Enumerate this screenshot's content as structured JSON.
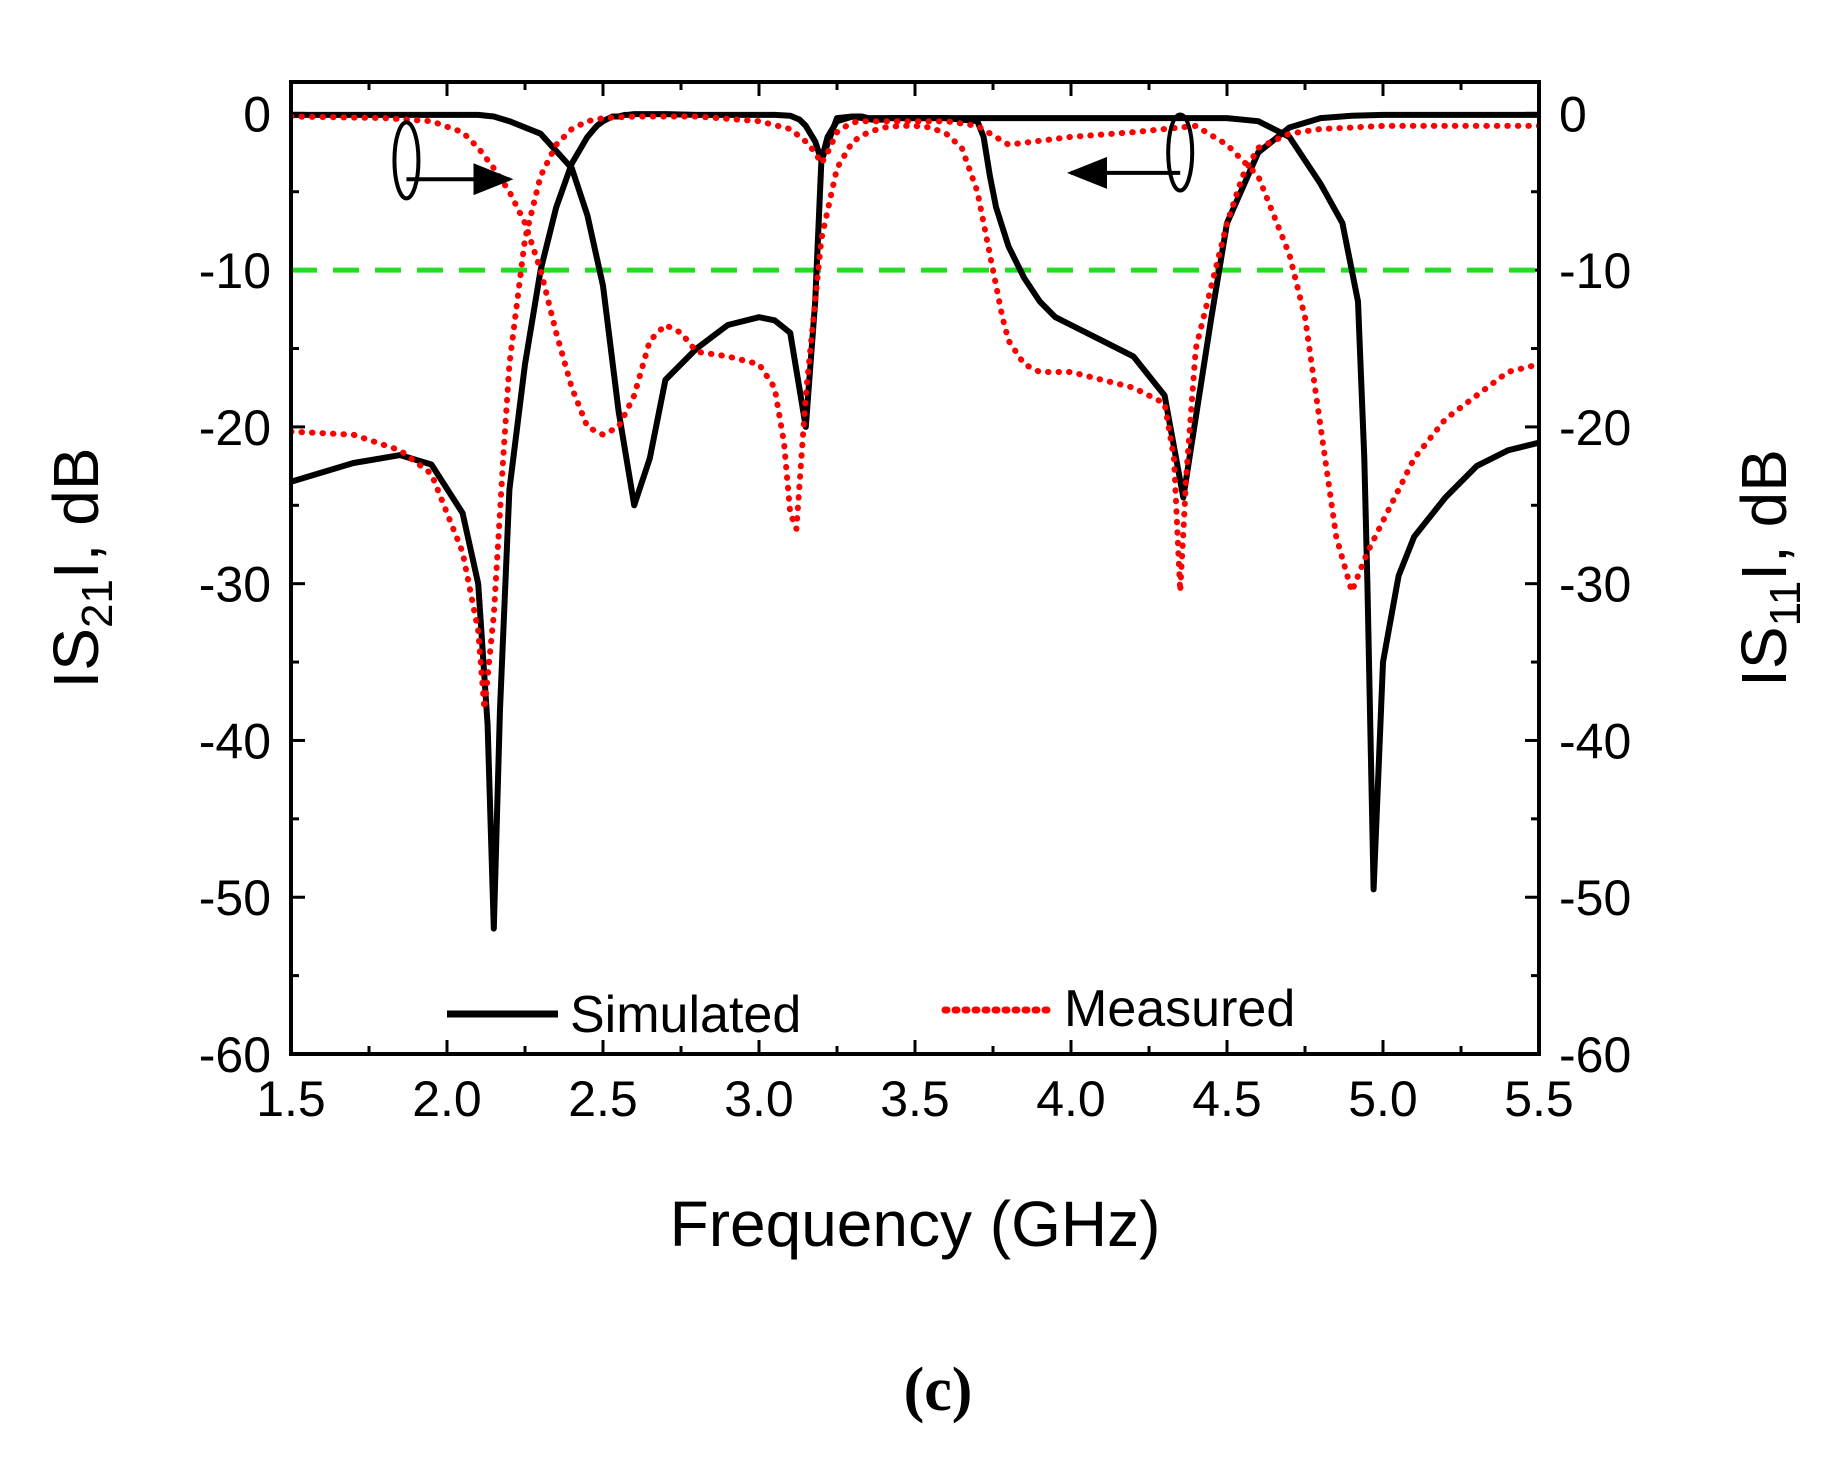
{
  "chart_data": {
    "type": "line",
    "panel_label": "(c)",
    "xlabel": "Frequency (GHz)",
    "ylabel_left": {
      "prefix": "IS",
      "sub": "21",
      "suffix": "I, dB"
    },
    "ylabel_right": {
      "prefix": "IS",
      "sub": "11",
      "suffix": "I, dB"
    },
    "xlim": [
      1.5,
      5.5
    ],
    "ylim": [
      -60,
      2
    ],
    "x_ticks": [
      "1.5",
      "2.0",
      "2.5",
      "3.0",
      "3.5",
      "4.0",
      "4.5",
      "5.0",
      "5.5"
    ],
    "x_tick_values": [
      1.5,
      2.0,
      2.5,
      3.0,
      3.5,
      4.0,
      4.5,
      5.0,
      5.5
    ],
    "y_ticks": [
      "0",
      "-10",
      "-20",
      "-30",
      "-40",
      "-50",
      "-60"
    ],
    "y_tick_values": [
      0,
      -10,
      -20,
      -30,
      -40,
      -50,
      -60
    ],
    "reference_line": {
      "y": -10,
      "color": "#22dd22",
      "style": "dashed"
    },
    "legend": [
      {
        "label": "Simulated",
        "color": "#000000",
        "style": "solid"
      },
      {
        "label": "Measured",
        "color": "#ff0000",
        "style": "dotted"
      }
    ],
    "annotations": [
      {
        "type": "ellipse-arrow",
        "target_axis": "right",
        "at": [
          1.87,
          -3.0
        ],
        "arrow_to": [
          2.2,
          -4.2
        ]
      },
      {
        "type": "ellipse-arrow",
        "target_axis": "left",
        "at": [
          4.35,
          -2.5
        ],
        "arrow_to": [
          4.0,
          -3.8
        ]
      }
    ],
    "series": [
      {
        "name": "Simulated S21",
        "color": "#000000",
        "style": "solid",
        "x": [
          1.5,
          1.8,
          2.0,
          2.1,
          2.15,
          2.2,
          2.3,
          2.4,
          2.45,
          2.5,
          2.55,
          2.6,
          2.65,
          2.7,
          2.8,
          2.9,
          3.0,
          3.05,
          3.1,
          3.15,
          3.18,
          3.2,
          3.25,
          3.3,
          3.33,
          3.36,
          3.38,
          3.4,
          3.42,
          3.45,
          3.5,
          3.55,
          3.6,
          3.65,
          3.7,
          3.72,
          3.74,
          3.76,
          3.8,
          3.85,
          3.9,
          3.95,
          4.0,
          4.1,
          4.2,
          4.3,
          4.36,
          4.45,
          4.5,
          4.6,
          4.7,
          4.8,
          4.9,
          5.0,
          5.2,
          5.35,
          5.5
        ],
        "y": [
          -0.1,
          -0.1,
          -0.1,
          -0.1,
          -0.2,
          -0.5,
          -1.3,
          -3.5,
          -6.5,
          -11,
          -19,
          -25,
          -22,
          -17,
          -15,
          -13.5,
          -13,
          -13.2,
          -14,
          -20,
          -12,
          -3,
          -0.3,
          -0.2,
          -0.3,
          -0.4,
          -0.4,
          -0.4,
          -0.3,
          -0.3,
          -0.3,
          -0.3,
          -0.3,
          -0.4,
          -0.5,
          -1.5,
          -4,
          -6,
          -8.5,
          -10.5,
          -12,
          -13,
          -13.5,
          -14.5,
          -15.5,
          -18,
          -24.5,
          -13,
          -7,
          -2.5,
          -0.9,
          -0.3,
          -0.15,
          -0.1,
          -0.1,
          -0.1,
          -0.1
        ]
      },
      {
        "name": "Simulated S11",
        "color": "#000000",
        "style": "solid",
        "x": [
          1.5,
          1.7,
          1.85,
          1.95,
          2.05,
          2.1,
          2.13,
          2.15,
          2.17,
          2.2,
          2.25,
          2.3,
          2.35,
          2.4,
          2.45,
          2.48,
          2.5,
          2.53,
          2.55,
          2.57,
          2.58,
          2.6,
          2.7,
          2.8,
          2.9,
          3.0,
          3.05,
          3.1,
          3.13,
          3.15,
          3.18,
          3.2,
          3.22,
          3.25,
          3.3,
          3.33,
          3.35,
          3.36,
          3.37,
          3.39,
          3.41,
          3.43,
          3.45,
          3.46,
          3.47,
          3.5,
          3.55,
          3.6,
          3.65,
          3.67,
          3.7,
          3.72,
          3.73,
          3.74,
          3.76,
          3.8,
          3.9,
          4.0,
          4.2,
          4.4,
          4.5,
          4.6,
          4.7,
          4.8,
          4.87,
          4.92,
          4.94,
          4.95,
          4.97,
          5.0,
          5.05,
          5.1,
          5.2,
          5.3,
          5.4,
          5.5
        ],
        "y": [
          -23.5,
          -22.3,
          -21.8,
          -22.4,
          -25.5,
          -30,
          -39,
          -52,
          -38,
          -24,
          -16,
          -10,
          -6,
          -3.2,
          -1.5,
          -0.8,
          -0.5,
          -0.2,
          -0.2,
          -0.1,
          -0.1,
          -0.05,
          -0.05,
          -0.1,
          -0.1,
          -0.1,
          -0.1,
          -0.15,
          -0.4,
          -0.8,
          -1.8,
          -3,
          -1.5,
          -0.5,
          -0.2,
          -0.2,
          -0.3,
          -0.3,
          -0.3,
          -0.3,
          -0.3,
          -0.3,
          -0.3,
          -0.3,
          -0.3,
          -0.3,
          -0.3,
          -0.3,
          -0.3,
          -0.3,
          -0.3,
          -0.3,
          -0.3,
          -0.3,
          -0.3,
          -0.3,
          -0.3,
          -0.3,
          -0.3,
          -0.3,
          -0.3,
          -0.5,
          -1.5,
          -4.5,
          -7,
          -12,
          -22,
          -30,
          -49.5,
          -35,
          -29.5,
          -27,
          -24.5,
          -22.5,
          -21.5,
          -21
        ]
      },
      {
        "name": "Measured S21",
        "color": "#ff0000",
        "style": "dotted",
        "x": [
          1.5,
          1.8,
          1.95,
          2.05,
          2.1,
          2.15,
          2.2,
          2.25,
          2.3,
          2.35,
          2.4,
          2.45,
          2.5,
          2.55,
          2.6,
          2.65,
          2.7,
          2.75,
          2.8,
          2.9,
          3.0,
          3.05,
          3.08,
          3.1,
          3.12,
          3.15,
          3.2,
          3.25,
          3.3,
          3.35,
          3.4,
          3.45,
          3.5,
          3.55,
          3.6,
          3.65,
          3.7,
          3.75,
          3.78,
          3.8,
          3.85,
          3.9,
          4.0,
          4.1,
          4.2,
          4.3,
          4.33,
          4.35,
          4.37,
          4.4,
          4.45,
          4.5,
          4.55,
          4.6,
          4.7,
          4.8,
          4.9,
          5.0,
          5.2,
          5.4,
          5.5
        ],
        "y": [
          -0.2,
          -0.3,
          -0.5,
          -1.2,
          -2.2,
          -3.5,
          -5,
          -7,
          -10,
          -14,
          -17.5,
          -20,
          -20.5,
          -20,
          -18,
          -14.5,
          -13.5,
          -14,
          -15.2,
          -15.5,
          -16,
          -17.5,
          -21,
          -25.5,
          -26.5,
          -18,
          -8,
          -3.5,
          -1.8,
          -1.2,
          -0.9,
          -0.8,
          -0.8,
          -0.9,
          -1.3,
          -2.2,
          -5,
          -10,
          -13,
          -14.5,
          -16,
          -16.5,
          -16.5,
          -17,
          -17.5,
          -18.5,
          -22,
          -30.5,
          -23,
          -15,
          -11,
          -7,
          -4,
          -2.2,
          -1.3,
          -1,
          -0.9,
          -0.8,
          -0.8,
          -0.8,
          -0.8
        ]
      },
      {
        "name": "Measured S11",
        "color": "#ff0000",
        "style": "dotted",
        "x": [
          1.5,
          1.7,
          1.85,
          1.95,
          2.05,
          2.1,
          2.12,
          2.15,
          2.18,
          2.2,
          2.25,
          2.3,
          2.35,
          2.4,
          2.45,
          2.5,
          2.6,
          2.8,
          3.0,
          3.1,
          3.15,
          3.18,
          3.2,
          3.22,
          3.25,
          3.28,
          3.3,
          3.32,
          3.35,
          3.4,
          3.45,
          3.5,
          3.6,
          3.7,
          3.8,
          4.0,
          4.2,
          4.4,
          4.5,
          4.6,
          4.7,
          4.75,
          4.8,
          4.85,
          4.9,
          4.95,
          5.0,
          5.1,
          5.2,
          5.3,
          5.4,
          5.5
        ],
        "y": [
          -20.3,
          -20.5,
          -21.5,
          -23,
          -28,
          -33,
          -38,
          -32,
          -22,
          -16,
          -8,
          -4,
          -2,
          -1,
          -0.5,
          -0.3,
          -0.2,
          -0.2,
          -0.5,
          -1,
          -1.8,
          -2.5,
          -3.2,
          -2.5,
          -1.2,
          -0.8,
          -0.6,
          -0.5,
          -0.5,
          -0.5,
          -0.5,
          -0.5,
          -0.5,
          -0.8,
          -2,
          -1.5,
          -1.2,
          -0.8,
          -2,
          -4,
          -9,
          -13,
          -20,
          -27,
          -30.5,
          -28,
          -26,
          -22,
          -19.5,
          -18,
          -16.5,
          -16
        ]
      }
    ]
  }
}
